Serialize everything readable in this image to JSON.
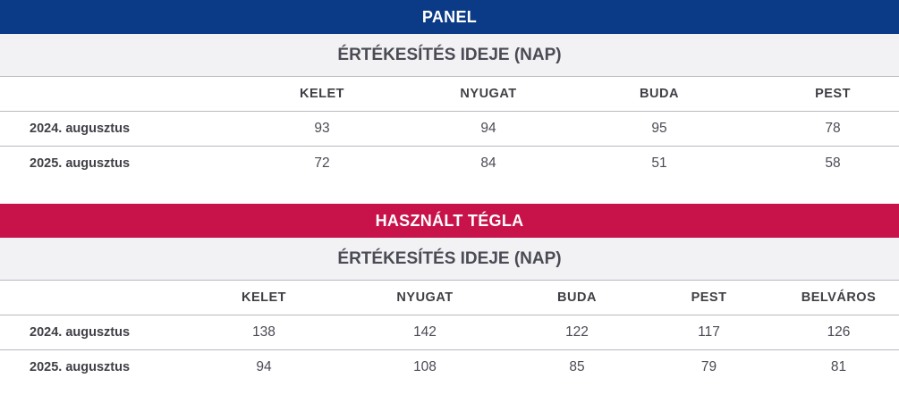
{
  "colors": {
    "panel_banner": "#0b3a86",
    "tegla_banner": "#c8124a",
    "subheader_bg": "#f2f2f4"
  },
  "panel": {
    "title": "PANEL",
    "subtitle": "ÉRTÉKESÍTÉS IDEJE (NAP)",
    "columns": [
      "KELET",
      "NYUGAT",
      "BUDA",
      "PEST"
    ],
    "rows": [
      {
        "label": "2024. augusztus",
        "values": [
          "93",
          "94",
          "95",
          "78"
        ]
      },
      {
        "label": "2025. augusztus",
        "values": [
          "72",
          "84",
          "51",
          "58"
        ]
      }
    ]
  },
  "tegla": {
    "title": "HASZNÁLT TÉGLA",
    "subtitle": "ÉRTÉKESÍTÉS IDEJE (NAP)",
    "columns": [
      "KELET",
      "NYUGAT",
      "BUDA",
      "PEST",
      "BELVÁROS"
    ],
    "rows": [
      {
        "label": "2024. augusztus",
        "values": [
          "138",
          "142",
          "122",
          "117",
          "126"
        ]
      },
      {
        "label": "2025. augusztus",
        "values": [
          "94",
          "108",
          "85",
          "79",
          "81"
        ]
      }
    ]
  }
}
